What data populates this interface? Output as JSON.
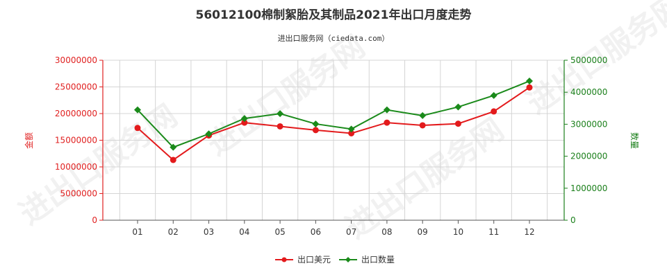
{
  "chart_data": {
    "type": "line",
    "title": "56012100棉制絮胎及其制品2021年出口月度走势",
    "subtitle": "进出口服务网（ciedata.com）",
    "categories": [
      "01",
      "02",
      "03",
      "04",
      "05",
      "06",
      "07",
      "08",
      "09",
      "10",
      "11",
      "12"
    ],
    "y_left": {
      "label": "金额",
      "ylim": [
        0,
        30000000
      ],
      "ticks": [
        "0",
        "5000000",
        "10000000",
        "15000000",
        "20000000",
        "25000000",
        "30000000"
      ]
    },
    "y_right": {
      "label": "数量",
      "ylim": [
        0,
        5000000
      ],
      "ticks": [
        "0",
        "1000000",
        "2000000",
        "3000000",
        "4000000",
        "5000000"
      ]
    },
    "series": [
      {
        "name": "出口美元",
        "axis": "left",
        "color": "#e31a1c",
        "values": [
          17300000,
          11300000,
          15900000,
          18300000,
          17600000,
          16900000,
          16300000,
          18300000,
          17800000,
          18100000,
          20400000,
          24900000
        ]
      },
      {
        "name": "出口数量",
        "axis": "right",
        "color": "#1a8a1a",
        "values": [
          3450000,
          2280000,
          2700000,
          3180000,
          3330000,
          3010000,
          2850000,
          3450000,
          3270000,
          3540000,
          3900000,
          4350000
        ]
      }
    ],
    "grid": true,
    "legend_position": "bottom-center"
  },
  "watermark": "进出口服务网"
}
